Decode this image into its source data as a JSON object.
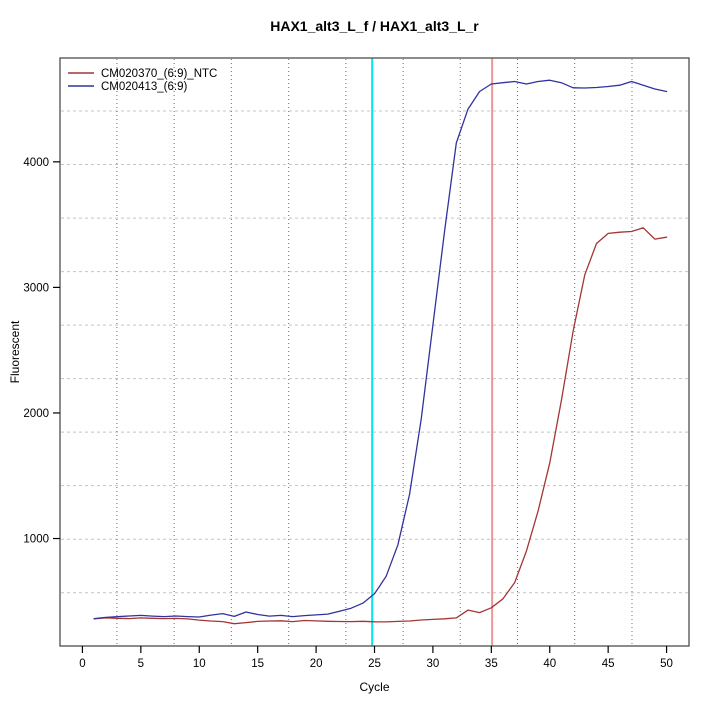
{
  "title": "HAX1_alt3_L_f / HAX1_alt3_L_r",
  "chart_data": {
    "type": "line",
    "title": "HAX1_alt3_L_f / HAX1_alt3_L_r",
    "xlabel": "Cycle",
    "ylabel": "Fluorescent",
    "xlim": [
      -1.92,
      51.92
    ],
    "ylim": [
      144,
      4827
    ],
    "x_ticks": [
      0,
      5,
      10,
      15,
      20,
      25,
      30,
      35,
      40,
      45,
      50
    ],
    "y_ticks": [
      1000,
      2000,
      3000,
      4000
    ],
    "grid": {
      "style": "dotted",
      "x_gridlines_cycles": [
        2.95,
        7.85,
        12.75,
        17.65,
        22.55,
        27.45,
        32.34,
        37.24,
        42.14,
        47.04
      ],
      "y_gridlines_values": [
        4405,
        3979,
        3552,
        3126,
        2700,
        2273,
        1847,
        1421,
        994,
        568
      ]
    },
    "vlines": [
      {
        "name": "cyan-threshold-line",
        "x": 24.8,
        "color": "#00E8E8",
        "width": 2
      },
      {
        "name": "salmon-threshold-line",
        "x": 35.07,
        "color": "#F09595",
        "width": 2
      }
    ],
    "legend_position": "top-left",
    "x_start_cycle": 1,
    "series": [
      {
        "name": "CM020370_(6:9)_NTC",
        "color": "#A43535",
        "values": [
          360,
          368,
          365,
          362,
          368,
          365,
          362,
          364,
          360,
          350,
          343,
          338,
          322,
          330,
          340,
          343,
          345,
          338,
          347,
          344,
          341,
          339,
          338,
          341,
          337,
          336,
          340,
          343,
          351,
          356,
          361,
          368,
          430,
          410,
          448,
          520,
          650,
          900,
          1220,
          1600,
          2100,
          2650,
          3100,
          3350,
          3430,
          3440,
          3445,
          3475,
          3385,
          3400
        ]
      },
      {
        "name": "CM020413_(6:9)",
        "color": "#32329F",
        "values": [
          362,
          372,
          378,
          383,
          388,
          382,
          378,
          383,
          378,
          375,
          390,
          402,
          380,
          415,
          395,
          382,
          388,
          378,
          386,
          392,
          398,
          420,
          445,
          485,
          560,
          700,
          950,
          1350,
          1950,
          2700,
          3450,
          4150,
          4420,
          4560,
          4620,
          4630,
          4640,
          4620,
          4640,
          4650,
          4630,
          4590,
          4588,
          4592,
          4600,
          4610,
          4640,
          4610,
          4580,
          4560
        ]
      }
    ]
  },
  "colors": {
    "plot_border": "#4d4d4d",
    "h_grid": "#c4c4c4",
    "v_grid": "#707070",
    "background": "#ffffff"
  }
}
